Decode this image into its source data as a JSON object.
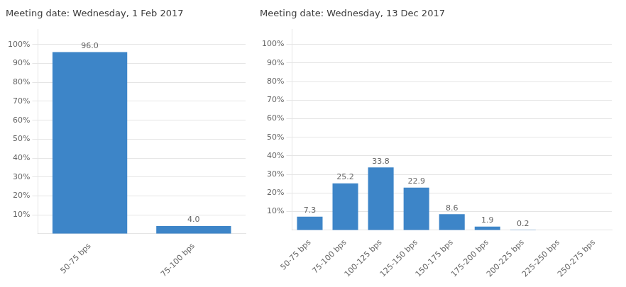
{
  "chart_data": [
    {
      "type": "bar",
      "title": "Meeting date: Wednesday, 1 Feb 2017",
      "categories": [
        "50-75 bps",
        "75-100 bps"
      ],
      "values": [
        96.0,
        4.0
      ],
      "value_labels": [
        "96.0",
        "4.0"
      ],
      "data_labels": true,
      "color": "#3d85c8",
      "ylim": [
        0,
        108
      ],
      "yticks": [
        {
          "value": 10,
          "label": "10%"
        },
        {
          "value": 20,
          "label": "20%"
        },
        {
          "value": 30,
          "label": "30%"
        },
        {
          "value": 40,
          "label": "40%"
        },
        {
          "value": 50,
          "label": "50%"
        },
        {
          "value": 60,
          "label": "60%"
        },
        {
          "value": 70,
          "label": "70%"
        },
        {
          "value": 80,
          "label": "80%"
        },
        {
          "value": 90,
          "label": "90%"
        },
        {
          "value": 100,
          "label": "100%"
        }
      ],
      "grid": true
    },
    {
      "type": "bar",
      "title": "Meeting date: Wednesday, 13 Dec 2017",
      "categories": [
        "50-75 bps",
        "75-100 bps",
        "100-125 bps",
        "125-150 bps",
        "150-175 bps",
        "175-200 bps",
        "200-225 bps",
        "225-250 bps",
        "250-275 bps"
      ],
      "values": [
        7.3,
        25.2,
        33.8,
        22.9,
        8.6,
        1.9,
        0.2,
        0.0,
        0.0
      ],
      "value_labels": [
        "7.3",
        "25.2",
        "33.8",
        "22.9",
        "8.6",
        "1.9",
        "0.2",
        null,
        null
      ],
      "data_labels": true,
      "color": "#3d85c8",
      "ylim": [
        0,
        108
      ],
      "yticks": [
        {
          "value": 10,
          "label": "10%"
        },
        {
          "value": 20,
          "label": "20%"
        },
        {
          "value": 30,
          "label": "30%"
        },
        {
          "value": 40,
          "label": "40%"
        },
        {
          "value": 50,
          "label": "50%"
        },
        {
          "value": 60,
          "label": "60%"
        },
        {
          "value": 70,
          "label": "70%"
        },
        {
          "value": 80,
          "label": "80%"
        },
        {
          "value": 90,
          "label": "90%"
        },
        {
          "value": 100,
          "label": "100%"
        }
      ],
      "grid": true
    }
  ]
}
